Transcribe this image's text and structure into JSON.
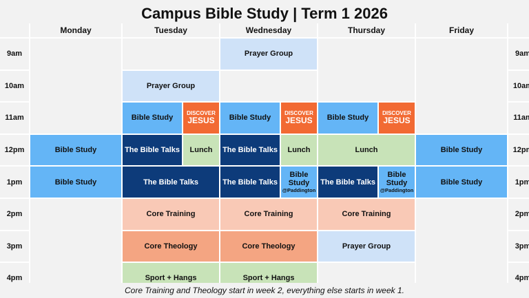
{
  "title": "Campus Bible Study | Term 1 2026",
  "days": [
    "Monday",
    "Tuesday",
    "Wednesday",
    "Thursday",
    "Friday"
  ],
  "times": [
    "9am",
    "10am",
    "11am",
    "12pm",
    "1pm",
    "2pm",
    "3pm",
    "4pm"
  ],
  "events": {
    "prayer_group": "Prayer Group",
    "bible_study": "Bible Study",
    "discover_small": "DISCOVER",
    "discover_big": "JESUS",
    "bible_talks": "The Bible Talks",
    "lunch": "Lunch",
    "bible_study_line1": "Bible",
    "bible_study_line2": "Study",
    "paddington": "@Paddington",
    "core_training": "Core Training",
    "core_theology": "Core Theology",
    "sport_hangs": "Sport + Hangs"
  },
  "colors": {
    "bible_study": "#64b5f6",
    "bible_talks": "#0d3b7a",
    "prayer_group": "#cfe2f8",
    "lunch": "#c8e3b8",
    "core_training": "#f9c9b6",
    "core_theology": "#f4a582",
    "discover_jesus": "#f26a33"
  },
  "footnote": "Core Training and Theology start in week 2, everything else starts in week 1."
}
